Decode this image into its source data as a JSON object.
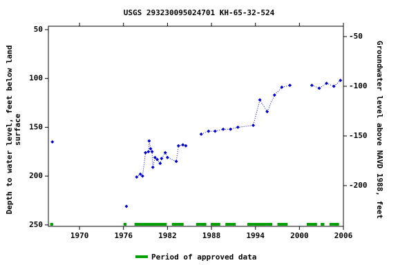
{
  "chart_data": {
    "type": "scatter",
    "title": "USGS 293230095024701 KH-65-32-524",
    "y_label": [
      "Depth to water level, feet below land",
      "surface"
    ],
    "y2_label": "Groundwater level above NAVD 1988, feet",
    "xlim": [
      1965.75,
      2006
    ],
    "xticks": [
      1970,
      1976,
      1982,
      1988,
      1994,
      2000,
      2006
    ],
    "ylim": [
      46.5,
      251.5
    ],
    "y_inverted": true,
    "yticks": [
      50,
      100,
      150,
      200,
      250
    ],
    "y2lim": [
      -241,
      -39.6
    ],
    "y2ticks": [
      -50,
      -100,
      -150,
      -200
    ],
    "series": [
      {
        "name": "Depth to water level",
        "color": "#0000cc",
        "line_style": "dotted",
        "x": [
          1966.3,
          null,
          1976.4,
          null,
          1977.8,
          1978.3,
          1978.6,
          1979.0,
          1979.4,
          1979.5,
          1979.7,
          1979.9,
          1980.0,
          1980.3,
          1980.6,
          1981.0,
          1981.2,
          1981.7,
          1982.0,
          1983.2,
          1983.5,
          1984.1,
          1984.5,
          null,
          1986.6,
          1987.6,
          1988.5,
          1989.6,
          1990.6,
          1991.6,
          1993.7,
          1994.6,
          1995.6,
          1996.6,
          1997.6,
          1998.7,
          null,
          2001.7,
          2002.7,
          2003.7,
          2004.7,
          2005.6
        ],
        "values": [
          165,
          null,
          231,
          null,
          201,
          198,
          200,
          176,
          175,
          164,
          172,
          175,
          191,
          181,
          183,
          187,
          182,
          176,
          181,
          185,
          169,
          168,
          169,
          null,
          157,
          154,
          154,
          152,
          152,
          150,
          148,
          122,
          134,
          117,
          109,
          107,
          null,
          107,
          110,
          105,
          108,
          102
        ]
      }
    ],
    "approved_periods": {
      "name": "Period of approved data",
      "color": "#00a000",
      "ranges": [
        [
          1966.0,
          1966.4
        ],
        [
          1976.0,
          1976.4
        ],
        [
          1977.5,
          1981.9
        ],
        [
          1982.6,
          1984.2
        ],
        [
          1985.9,
          1987.3
        ],
        [
          1987.9,
          1989.2
        ],
        [
          1989.9,
          1991.3
        ],
        [
          1992.9,
          1996.3
        ],
        [
          1997.0,
          1998.4
        ],
        [
          2001.0,
          2002.4
        ],
        [
          2002.9,
          2003.4
        ],
        [
          2004.1,
          2005.4
        ]
      ]
    }
  }
}
